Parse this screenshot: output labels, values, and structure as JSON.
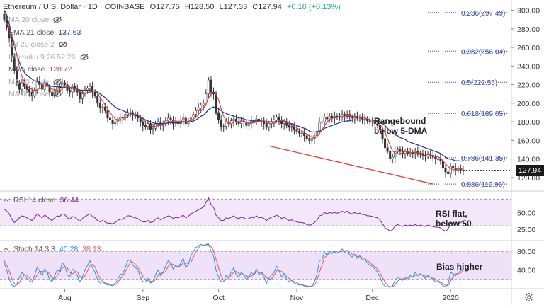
{
  "header": {
    "symbol": "Ethereum / U.S. Dollar · 1D · COINBASE",
    "open": "O127.75",
    "high": "H128.50",
    "low": "L127.33",
    "close": "C127.94",
    "change": "+0.16 (+0.13%)"
  },
  "legend": [
    {
      "label": "MA 20 close",
      "value": "",
      "color": "#aaaaaa",
      "dim": true
    },
    {
      "label": "EMA 21 close",
      "value": "137.63",
      "color": "#1f3a93",
      "dim": false
    },
    {
      "label": "BB 20 close 2",
      "value": "",
      "color": "#aaaaaa",
      "dim": true
    },
    {
      "label": "Ichimoku 9 26 52 26",
      "value": "",
      "color": "#aaaaaa",
      "dim": true
    },
    {
      "label": "MA 5 close",
      "value": "128.72",
      "color": "#e53935",
      "dim": false
    },
    {
      "label": "MA 50 close",
      "value": "",
      "color": "#aaaaaa",
      "dim": true
    },
    {
      "label": "MA 50 close",
      "value": "",
      "color": "#aaaaaa",
      "dim": true
    }
  ],
  "annotations": {
    "main": "Rangebound\nbelow 5-DMA",
    "rsi": "RSI flat,\nbelow 50",
    "stoch": "Bias higher"
  },
  "current_price": "127.94",
  "rsi_legend": {
    "label": "RSI 14 close",
    "value": "36.44",
    "color": "#7b1fa2"
  },
  "stoch_legend": {
    "label": "Stoch 14 3 3",
    "k": "40.28",
    "d": "38.13",
    "k_color": "#2196f3",
    "d_color": "#ef5350"
  },
  "colors": {
    "up": "#26a69a",
    "down": "#ef5350",
    "candle": "#333333",
    "ema": "#1f3a93",
    "ma5": "#e53935",
    "fib": "#3949ab",
    "trend": "#e53935",
    "rsi": "#7b1fa2",
    "band": "#e9d8f5"
  },
  "chart_data": {
    "type": "candlestick",
    "x_ticks": [
      {
        "label": "Aug",
        "date": "2019-08-01"
      },
      {
        "label": "Sep",
        "date": "2019-09-01"
      },
      {
        "label": "Oct",
        "date": "2019-10-01"
      },
      {
        "label": "Nov",
        "date": "2019-11-01"
      },
      {
        "label": "Dec",
        "date": "2019-12-01"
      },
      {
        "label": "2020",
        "date": "2020-01-01"
      }
    ],
    "ylim": [
      110,
      305
    ],
    "y_ticks": [
      120,
      140,
      160,
      180,
      200,
      220,
      240,
      260,
      280,
      300
    ],
    "fib_levels": [
      {
        "label": "0.236(297.49)",
        "value": 297.49
      },
      {
        "label": "0.382(256.04)",
        "value": 256.04
      },
      {
        "label": "0.5(222.55)",
        "value": 222.55
      },
      {
        "label": "0.618(189.05)",
        "value": 189.05
      },
      {
        "label": "0.786(141.35)",
        "value": 141.35
      },
      {
        "label": "0.886(112.96)",
        "value": 112.96
      }
    ],
    "trendline": {
      "start": {
        "date": "2019-10-21",
        "value": 154
      },
      "end": {
        "date": "2019-12-25",
        "value": 113
      }
    },
    "close_series": [
      290,
      282,
      270,
      250,
      235,
      222,
      215,
      222,
      218,
      215,
      212,
      208,
      214,
      224,
      220,
      215,
      222,
      218,
      212,
      208,
      214,
      218,
      216,
      222,
      220,
      214,
      212,
      218,
      215,
      212,
      205,
      210,
      214,
      216,
      218,
      212,
      208,
      200,
      195,
      196,
      192,
      184,
      182,
      178,
      180,
      183,
      185,
      184,
      188,
      190,
      190,
      187,
      186,
      184,
      180,
      176,
      175,
      178,
      172,
      173,
      178,
      180,
      176,
      178,
      181,
      184,
      182,
      178,
      180,
      178,
      182,
      184,
      178,
      180,
      185,
      188,
      192,
      195,
      198,
      200,
      210,
      225,
      212,
      210,
      190,
      182,
      175,
      175,
      180,
      178,
      181,
      183,
      180,
      178,
      181,
      180,
      176,
      178,
      181,
      180,
      183,
      180,
      181,
      178,
      174,
      178,
      180,
      182,
      185,
      181,
      178,
      180,
      176,
      174,
      175,
      172,
      170,
      168,
      168,
      165,
      162,
      160,
      162,
      165,
      170,
      180,
      180,
      185,
      183,
      186,
      184,
      186,
      185,
      186,
      188,
      186,
      188,
      185,
      184,
      186,
      184,
      185,
      183,
      183,
      181,
      180,
      180,
      178,
      176,
      172,
      162,
      152,
      148,
      140,
      142,
      148,
      150,
      148,
      146,
      148,
      146,
      147,
      146,
      148,
      145,
      146,
      144,
      143,
      145,
      144,
      142,
      140,
      140,
      138,
      130,
      126,
      124,
      132,
      130,
      128,
      130,
      128,
      127.94
    ],
    "ema21_series": [
      300,
      295,
      285,
      272,
      262,
      252,
      244,
      238,
      233,
      230,
      228,
      226,
      224,
      223,
      222,
      221,
      221,
      220,
      219,
      218,
      218,
      218,
      217,
      217,
      217,
      216,
      216,
      216,
      216,
      215,
      214,
      214,
      214,
      214,
      214,
      214,
      213,
      212,
      210,
      208,
      206,
      203,
      201,
      198,
      196,
      194,
      193,
      192,
      191,
      190,
      189,
      188,
      187,
      186,
      185,
      184,
      182,
      181,
      180,
      179,
      178,
      178,
      178,
      178,
      178,
      179,
      179,
      179,
      179,
      179,
      179,
      180,
      180,
      180,
      180,
      181,
      182,
      184,
      186,
      187,
      190,
      193,
      195,
      196,
      195,
      194,
      192,
      190,
      189,
      188,
      187,
      186,
      185,
      184,
      184,
      183,
      182,
      182,
      181,
      181,
      181,
      181,
      181,
      180,
      180,
      180,
      180,
      180,
      180,
      180,
      180,
      180,
      179,
      178,
      178,
      177,
      176,
      175,
      174,
      173,
      172,
      170,
      169,
      169,
      169,
      170,
      171,
      173,
      174,
      175,
      176,
      177,
      178,
      179,
      180,
      180,
      181,
      181,
      182,
      182,
      182,
      182,
      182,
      182,
      182,
      182,
      182,
      181,
      181,
      180,
      178,
      176,
      173,
      170,
      168,
      166,
      165,
      163,
      162,
      161,
      159,
      158,
      157,
      156,
      155,
      154,
      153,
      152,
      151,
      150,
      149,
      148,
      147,
      146,
      144,
      142,
      140,
      140,
      139,
      138,
      138,
      137.8,
      137.63
    ],
    "rsi_series": [
      55,
      52,
      48,
      40,
      35,
      38,
      42,
      45,
      44,
      42,
      40,
      38,
      42,
      48,
      45,
      42,
      46,
      44,
      40,
      38,
      42,
      45,
      44,
      48,
      47,
      42,
      40,
      44,
      43,
      40,
      37,
      41,
      44,
      46,
      48,
      44,
      42,
      38,
      36,
      38,
      36,
      34,
      34,
      33,
      35,
      38,
      40,
      40,
      43,
      45,
      45,
      43,
      42,
      41,
      38,
      36,
      36,
      38,
      35,
      36,
      40,
      42,
      39,
      41,
      43,
      45,
      44,
      41,
      43,
      42,
      44,
      46,
      42,
      44,
      48,
      50,
      52,
      54,
      56,
      58,
      65,
      72,
      62,
      58,
      46,
      42,
      38,
      38,
      42,
      41,
      43,
      45,
      42,
      41,
      43,
      42,
      40,
      41,
      43,
      42,
      45,
      42,
      43,
      41,
      38,
      41,
      43,
      44,
      46,
      44,
      41,
      43,
      40,
      38,
      39,
      37,
      36,
      35,
      35,
      34,
      32,
      31,
      32,
      35,
      38,
      45,
      46,
      50,
      48,
      50,
      49,
      50,
      49,
      50,
      52,
      50,
      52,
      49,
      48,
      50,
      48,
      49,
      47,
      47,
      45,
      45,
      44,
      43,
      42,
      39,
      33,
      27,
      25,
      22,
      24,
      30,
      32,
      30,
      29,
      31,
      30,
      31,
      30,
      32,
      30,
      31,
      30,
      29,
      31,
      30,
      29,
      28,
      28,
      27,
      24,
      22,
      25,
      34,
      33,
      32,
      34,
      35,
      36.44
    ],
    "stoch_k_series": [
      55,
      40,
      20,
      8,
      5,
      10,
      25,
      35,
      30,
      22,
      18,
      14,
      28,
      45,
      38,
      28,
      42,
      35,
      20,
      15,
      28,
      40,
      36,
      55,
      50,
      30,
      25,
      42,
      38,
      28,
      15,
      25,
      40,
      50,
      60,
      45,
      35,
      20,
      12,
      15,
      10,
      8,
      8,
      6,
      12,
      20,
      30,
      32,
      45,
      60,
      62,
      50,
      45,
      40,
      25,
      15,
      14,
      22,
      12,
      15,
      30,
      40,
      28,
      35,
      48,
      60,
      55,
      42,
      50,
      45,
      55,
      65,
      45,
      52,
      70,
      80,
      88,
      92,
      95,
      92,
      95,
      96,
      80,
      70,
      40,
      25,
      15,
      15,
      28,
      25,
      35,
      45,
      30,
      25,
      35,
      30,
      20,
      25,
      35,
      30,
      42,
      30,
      35,
      25,
      12,
      22,
      30,
      35,
      48,
      38,
      25,
      32,
      20,
      15,
      18,
      12,
      10,
      8,
      8,
      6,
      5,
      4,
      6,
      15,
      30,
      60,
      62,
      78,
      72,
      80,
      75,
      80,
      76,
      80,
      85,
      78,
      82,
      72,
      68,
      74,
      65,
      70,
      62,
      62,
      55,
      50,
      48,
      42,
      35,
      25,
      12,
      5,
      4,
      3,
      6,
      18,
      25,
      20,
      18,
      25,
      22,
      28,
      25,
      35,
      28,
      32,
      28,
      22,
      28,
      25,
      20,
      15,
      15,
      12,
      6,
      4,
      10,
      35,
      32,
      28,
      35,
      38,
      40.28
    ],
    "stoch_d_series": [
      60,
      50,
      38,
      22,
      11,
      8,
      13,
      23,
      30,
      29,
      23,
      18,
      20,
      29,
      37,
      37,
      36,
      35,
      32,
      23,
      21,
      28,
      35,
      44,
      47,
      45,
      35,
      32,
      35,
      36,
      27,
      23,
      27,
      38,
      50,
      52,
      47,
      33,
      22,
      16,
      12,
      11,
      9,
      7,
      9,
      13,
      21,
      27,
      36,
      46,
      56,
      57,
      52,
      45,
      37,
      27,
      18,
      17,
      16,
      16,
      19,
      28,
      33,
      34,
      37,
      48,
      54,
      52,
      49,
      46,
      50,
      55,
      55,
      54,
      56,
      67,
      79,
      87,
      92,
      93,
      94,
      94,
      90,
      82,
      63,
      45,
      27,
      18,
      19,
      23,
      29,
      35,
      37,
      33,
      30,
      30,
      28,
      25,
      27,
      30,
      36,
      34,
      36,
      30,
      24,
      20,
      21,
      29,
      38,
      40,
      37,
      32,
      26,
      22,
      18,
      15,
      13,
      10,
      9,
      7,
      6,
      5,
      5,
      8,
      17,
      35,
      51,
      67,
      71,
      77,
      76,
      78,
      77,
      79,
      80,
      81,
      82,
      77,
      74,
      71,
      69,
      70,
      66,
      65,
      60,
      56,
      51,
      47,
      42,
      34,
      24,
      14,
      7,
      4,
      4,
      9,
      16,
      21,
      21,
      21,
      22,
      25,
      25,
      29,
      29,
      32,
      29,
      27,
      26,
      25,
      24,
      20,
      17,
      14,
      11,
      7,
      7,
      16,
      26,
      32,
      32,
      34,
      38.13
    ],
    "rsi_ticks": [
      25,
      50
    ],
    "stoch_ticks": [
      40,
      80
    ]
  }
}
